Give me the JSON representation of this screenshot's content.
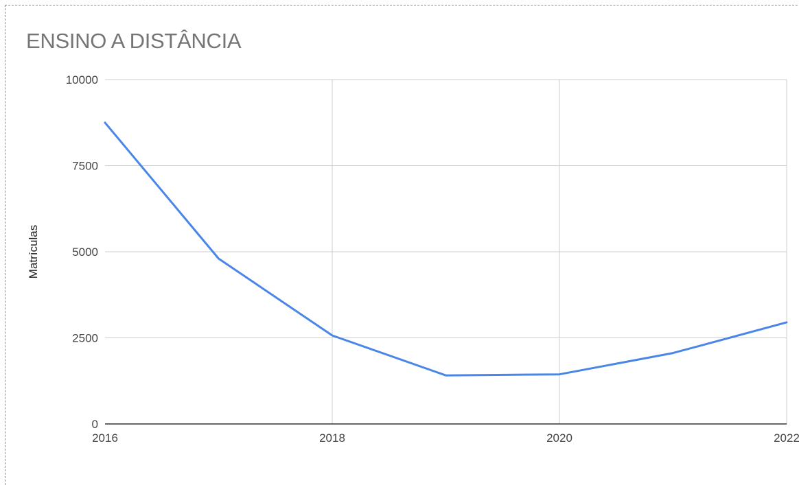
{
  "chart_data": {
    "type": "line",
    "title": "ENSINO A DISTÂNCIA",
    "xlabel": "",
    "ylabel": "Matrículas",
    "x": [
      2016,
      2017,
      2018,
      2019,
      2020,
      2021,
      2022
    ],
    "series": [
      {
        "values": [
          8750,
          4800,
          2570,
          1410,
          1440,
          2060,
          2950
        ]
      }
    ],
    "xlim": [
      2016,
      2022
    ],
    "ylim": [
      0,
      10000
    ],
    "x_ticks": [
      "2016",
      "2018",
      "2020",
      "2022"
    ],
    "y_ticks": [
      "0",
      "2500",
      "5000",
      "7500",
      "10000"
    ],
    "grid": true,
    "legend": "none",
    "line_color": "#4a86e8",
    "grid_color": "#cccccc",
    "axis_color": "#333333"
  }
}
